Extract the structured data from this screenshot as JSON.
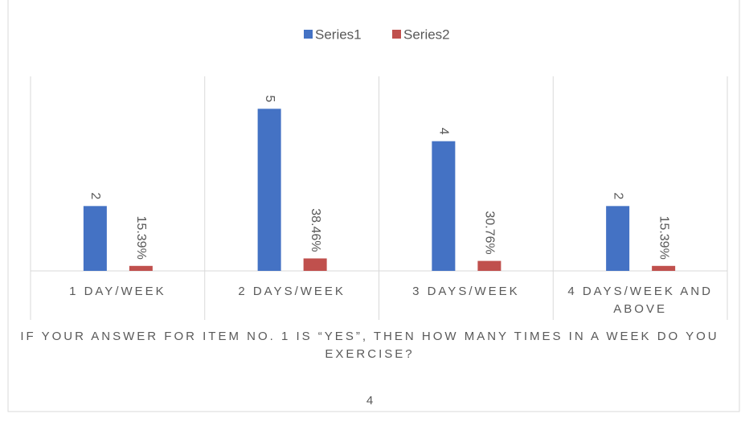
{
  "chart_data": {
    "type": "bar",
    "categories": [
      "1 DAY/WEEK",
      "2 DAYS/WEEK",
      "3 DAYS/WEEK",
      "4 DAYS/WEEK AND ABOVE"
    ],
    "series": [
      {
        "name": "Series1",
        "color": "#4472c4",
        "values": [
          2,
          5,
          4,
          2
        ]
      },
      {
        "name": "Series2",
        "color": "#c0504d",
        "values": [
          0.1539,
          0.3846,
          0.3076,
          0.1539
        ],
        "value_labels": [
          "15.39%",
          "38.46%",
          "30.76%",
          "15.39%"
        ]
      }
    ],
    "x_label": "IF YOUR ANSWER FOR ITEM NO. 1 IS “YES”, THEN HOW MANY TIMES IN A WEEK DO YOU EXERCISE?",
    "footnote": "4",
    "ylim": [
      0,
      6
    ],
    "legend": "top"
  }
}
